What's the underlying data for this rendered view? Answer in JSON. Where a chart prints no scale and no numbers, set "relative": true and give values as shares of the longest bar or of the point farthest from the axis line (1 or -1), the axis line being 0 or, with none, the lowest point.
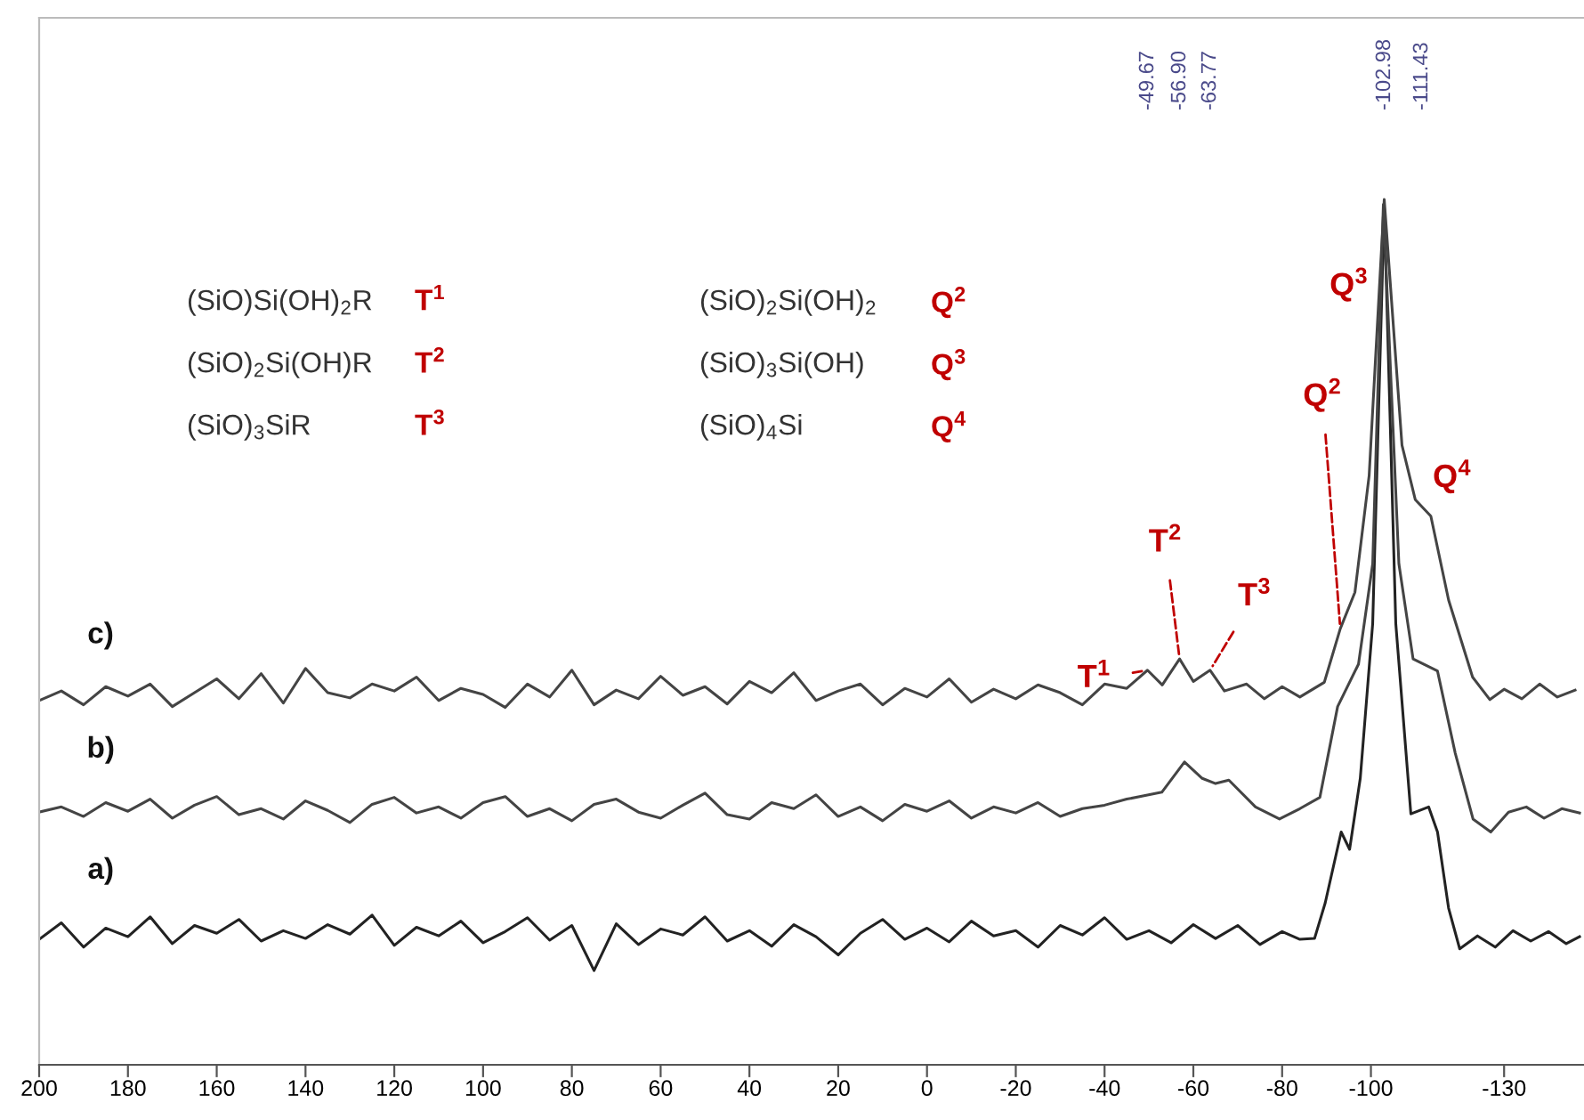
{
  "chart_data": {
    "type": "line",
    "relative": true,
    "tick_labels": "x",
    "grid": false,
    "legend": false,
    "xlim": [
      200,
      -148
    ],
    "xticks": [
      200,
      180,
      160,
      140,
      120,
      100,
      80,
      60,
      40,
      20,
      0,
      -20,
      -40,
      -60,
      -80,
      -100,
      -130
    ],
    "series": [
      {
        "name": "a)",
        "color": "#222222",
        "x": [
          200,
          195,
          190,
          185,
          180,
          175,
          170,
          165,
          160,
          155,
          150,
          145,
          140,
          135,
          130,
          125,
          120,
          115,
          110,
          105,
          100,
          95,
          90,
          85,
          80,
          75,
          70,
          65,
          60,
          55,
          50,
          45,
          40,
          35,
          30,
          25,
          20,
          15,
          10,
          5,
          0,
          -5,
          -10,
          -15,
          -20,
          -25,
          -30,
          -35,
          -40,
          -45,
          -50,
          -55,
          -60,
          -65,
          -70,
          -75,
          -80,
          -84,
          -87.3,
          -89.7,
          -93.3,
          -95.2,
          -97.6,
          -100.4,
          -103,
          -105.6,
          -109,
          -113,
          -115,
          -117.5,
          -120,
          -124,
          -128,
          -132,
          -136,
          -140,
          -144,
          -147
        ],
        "values": [
          0.145,
          0.164,
          0.136,
          0.158,
          0.148,
          0.171,
          0.14,
          0.161,
          0.152,
          0.168,
          0.143,
          0.155,
          0.146,
          0.162,
          0.151,
          0.173,
          0.138,
          0.159,
          0.149,
          0.166,
          0.141,
          0.154,
          0.17,
          0.144,
          0.161,
          0.109,
          0.163,
          0.139,
          0.157,
          0.15,
          0.171,
          0.143,
          0.155,
          0.137,
          0.162,
          0.148,
          0.127,
          0.152,
          0.168,
          0.145,
          0.158,
          0.142,
          0.166,
          0.149,
          0.155,
          0.136,
          0.161,
          0.15,
          0.17,
          0.145,
          0.155,
          0.141,
          0.162,
          0.146,
          0.161,
          0.139,
          0.154,
          0.145,
          0.146,
          0.187,
          0.269,
          0.249,
          0.331,
          0.51,
          0.991,
          0.51,
          0.29,
          0.298,
          0.269,
          0.181,
          0.134,
          0.149,
          0.136,
          0.155,
          0.143,
          0.154,
          0.14,
          0.148
        ]
      },
      {
        "name": "b)",
        "color": "#444444",
        "x": [
          200,
          195,
          190,
          185,
          180,
          175,
          170,
          165,
          160,
          155,
          150,
          145,
          140,
          135,
          130,
          125,
          120,
          115,
          110,
          105,
          100,
          95,
          90,
          85,
          80,
          75,
          70,
          65,
          60,
          55,
          50,
          45,
          40,
          35,
          30,
          25,
          20,
          15,
          10,
          5,
          0,
          -5,
          -10,
          -15,
          -20,
          -25,
          -30,
          -35,
          -40,
          -45,
          -48.9,
          -52.9,
          -58,
          -62,
          -65,
          -68,
          -74,
          -79.4,
          -84,
          -88.5,
          -92.5,
          -97.2,
          -100.4,
          -102.8,
          -106.3,
          -109.5,
          -115,
          -119,
          -123,
          -127,
          -131,
          -135,
          -139,
          -143,
          -147
        ],
        "values": [
          0.292,
          0.298,
          0.287,
          0.303,
          0.293,
          0.307,
          0.285,
          0.3,
          0.31,
          0.289,
          0.296,
          0.284,
          0.305,
          0.294,
          0.28,
          0.301,
          0.309,
          0.291,
          0.298,
          0.285,
          0.303,
          0.31,
          0.287,
          0.296,
          0.282,
          0.301,
          0.307,
          0.292,
          0.285,
          0.3,
          0.314,
          0.289,
          0.284,
          0.303,
          0.296,
          0.312,
          0.287,
          0.298,
          0.282,
          0.301,
          0.293,
          0.305,
          0.285,
          0.298,
          0.291,
          0.303,
          0.287,
          0.296,
          0.3,
          0.307,
          0.311,
          0.315,
          0.35,
          0.331,
          0.325,
          0.329,
          0.298,
          0.284,
          0.296,
          0.309,
          0.414,
          0.463,
          0.579,
          0.994,
          0.579,
          0.469,
          0.455,
          0.36,
          0.284,
          0.269,
          0.292,
          0.298,
          0.285,
          0.296,
          0.291
        ]
      },
      {
        "name": "c)",
        "color": "#444444",
        "x": [
          200,
          195,
          190,
          185,
          180,
          175,
          170,
          165,
          160,
          155,
          150,
          145,
          140,
          135,
          130,
          125,
          120,
          115,
          110,
          105,
          100,
          95,
          90,
          85,
          80,
          75,
          70,
          65,
          60,
          55,
          50,
          45,
          40,
          35,
          30,
          25,
          20,
          15,
          10,
          5,
          0,
          -5,
          -10,
          -15,
          -20,
          -25,
          -30,
          -35,
          -40,
          -45,
          -49.67,
          -53,
          -56.9,
          -60,
          -63.77,
          -67,
          -72,
          -76,
          -80,
          -84,
          -89.5,
          -93.1,
          -96.4,
          -99.6,
          -103,
          -107,
          -110,
          -113.5,
          -117.5,
          -122.9,
          -126.8,
          -130,
          -134,
          -138,
          -142,
          -146
        ],
        "values": [
          0.421,
          0.432,
          0.416,
          0.437,
          0.426,
          0.44,
          0.414,
          0.43,
          0.446,
          0.423,
          0.452,
          0.418,
          0.458,
          0.43,
          0.424,
          0.44,
          0.432,
          0.448,
          0.421,
          0.435,
          0.428,
          0.413,
          0.44,
          0.425,
          0.456,
          0.416,
          0.433,
          0.423,
          0.449,
          0.427,
          0.437,
          0.417,
          0.443,
          0.43,
          0.453,
          0.421,
          0.432,
          0.44,
          0.416,
          0.435,
          0.425,
          0.446,
          0.419,
          0.434,
          0.423,
          0.439,
          0.43,
          0.416,
          0.44,
          0.435,
          0.456,
          0.439,
          0.469,
          0.443,
          0.456,
          0.432,
          0.44,
          0.423,
          0.437,
          0.425,
          0.442,
          0.504,
          0.546,
          0.681,
          1.0,
          0.716,
          0.653,
          0.634,
          0.537,
          0.448,
          0.422,
          0.434,
          0.423,
          0.44,
          0.425,
          0.433
        ]
      }
    ],
    "annotations": [
      "(SiO)Si(OH)$_{2}$R",
      "T$^{1}$",
      "(SiO)$_{2}$Si(OH)$_{2}$",
      "Q$^{2}$",
      "(SiO)$_{2}$Si(OH)R",
      "T$^{2}$",
      "(SiO)$_{3}$Si(OH)",
      "Q$^{3}$",
      "(SiO)$_{3}$SiR",
      "T$^{3}$",
      "(SiO)$_{4}$Si",
      "Q$^{4}$",
      "-49.67",
      "-56.90",
      "-63.77",
      "-102.98",
      "-111.43",
      "Q$^{3}$",
      {
        "text": "T$^{1}$",
        "x": -49.67,
        "y": 0.456
      },
      {
        "text": "T$^{2}$",
        "x": -56.9,
        "y": 0.469
      },
      {
        "text": "T$^{3}$",
        "x": -63.77,
        "y": 0.456
      },
      {
        "text": "Q$^{2}$",
        "x": -93.1,
        "y": 0.504
      },
      {
        "text": "Q$^{4}$",
        "x": -113.5,
        "y": 0.634
      }
    ]
  }
}
